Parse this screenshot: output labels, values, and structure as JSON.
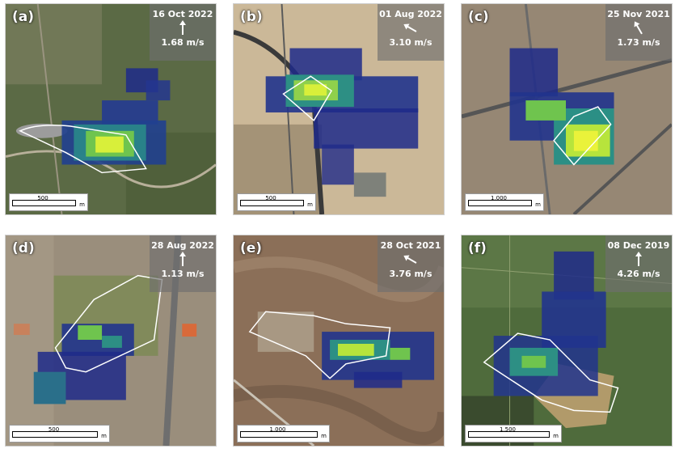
{
  "panels": [
    {
      "id": "a",
      "label": "(a)",
      "date": "16 Oct 2022",
      "speed": "1.68 m/s",
      "wind_direction_deg": 0,
      "scale_label": "500",
      "scale_unit": "m",
      "basemap": "green-urban"
    },
    {
      "id": "b",
      "label": "(b)",
      "date": "01 Aug 2022",
      "speed": "3.10 m/s",
      "wind_direction_deg": 300,
      "scale_label": "500",
      "scale_unit": "m",
      "basemap": "desert"
    },
    {
      "id": "c",
      "label": "(c)",
      "date": "25 Nov 2021",
      "speed": "1.73 m/s",
      "wind_direction_deg": 330,
      "scale_label": "1,000",
      "scale_unit": "m",
      "basemap": "city"
    },
    {
      "id": "d",
      "label": "(d)",
      "date": "28 Aug 2022",
      "speed": "1.13 m/s",
      "wind_direction_deg": 0,
      "scale_label": "500",
      "scale_unit": "m",
      "basemap": "suburb"
    },
    {
      "id": "e",
      "label": "(e)",
      "date": "28 Oct 2021",
      "speed": "3.76 m/s",
      "wind_direction_deg": 300,
      "scale_label": "1,000",
      "scale_unit": "m",
      "basemap": "mountains"
    },
    {
      "id": "f",
      "label": "(f)",
      "date": "08 Dec 2019",
      "speed": "4.26 m/s",
      "wind_direction_deg": 0,
      "scale_label": "1,500",
      "scale_unit": "m",
      "basemap": "wetland"
    }
  ]
}
